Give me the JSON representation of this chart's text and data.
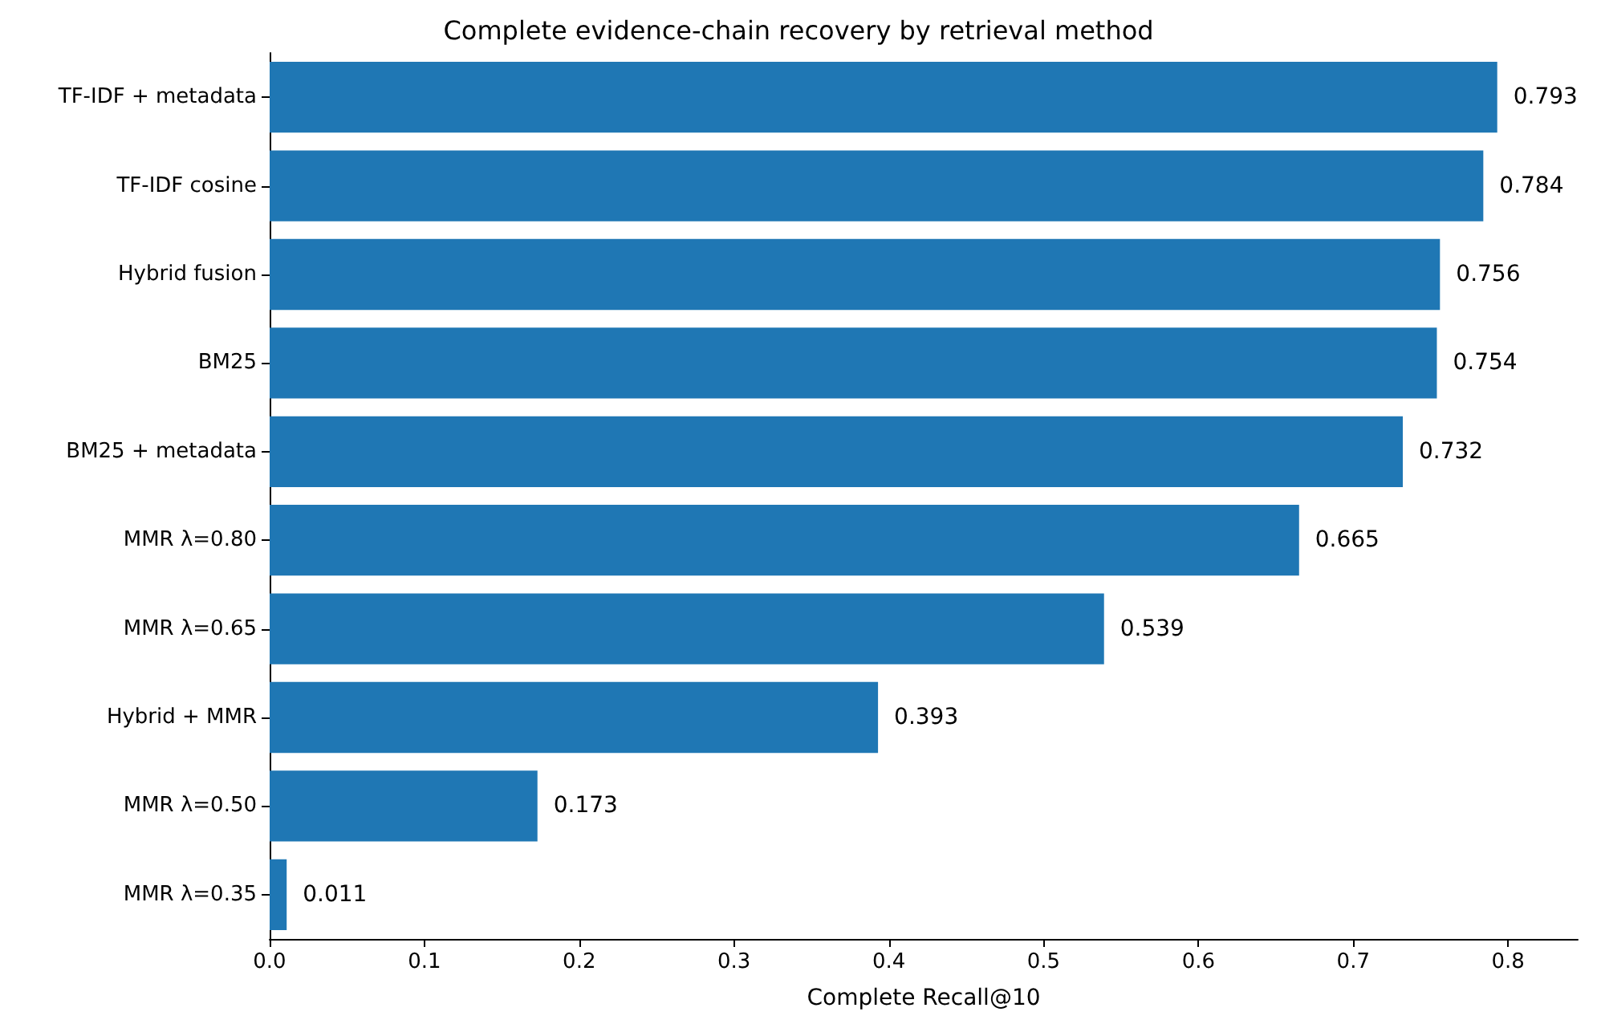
{
  "chart_data": {
    "type": "bar",
    "orientation": "horizontal",
    "title": "Complete evidence-chain recovery by retrieval method",
    "xlabel": "Complete Recall@10",
    "categories": [
      "TF-IDF + metadata",
      "TF-IDF cosine",
      "Hybrid fusion",
      "BM25",
      "BM25 + metadata",
      "MMR λ=0.80",
      "MMR λ=0.65",
      "Hybrid + MMR",
      "MMR λ=0.50",
      "MMR λ=0.35"
    ],
    "values": [
      0.793,
      0.784,
      0.756,
      0.754,
      0.732,
      0.665,
      0.539,
      0.393,
      0.173,
      0.011
    ],
    "color": "#1f77b4",
    "data_labels": true,
    "grid": false,
    "xlim": [
      0,
      0.845
    ],
    "xticks": [
      {
        "value": 0,
        "label": "0.0"
      },
      0.1,
      0.2,
      0.3,
      0.4,
      0.5,
      0.6,
      0.7,
      0.8
    ]
  }
}
